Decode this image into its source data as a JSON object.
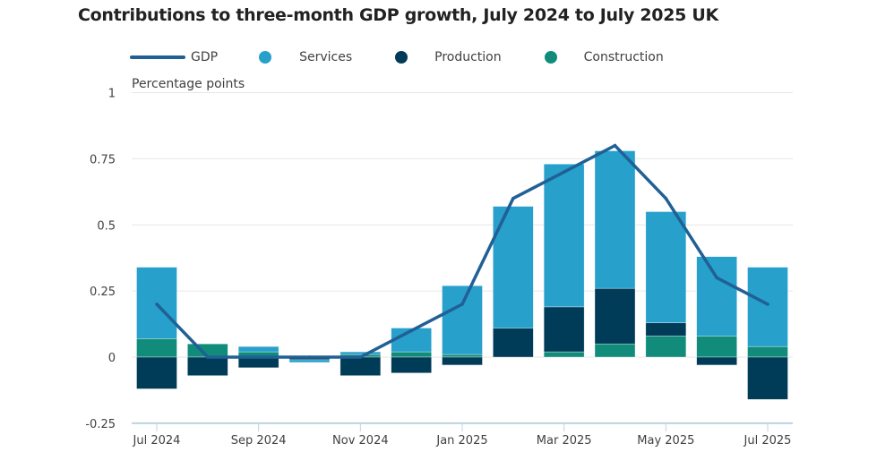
{
  "chart_data": {
    "type": "bar",
    "stacked": true,
    "title": "Contributions to three-month GDP growth, July 2024 to July 2025 UK",
    "ylabel": "Percentage points",
    "xlabel": "",
    "ylim": [
      -0.25,
      1
    ],
    "yticks": [
      -0.25,
      0,
      0.25,
      0.5,
      0.75,
      1
    ],
    "ytick_labels": [
      "-0.25",
      "0",
      "0.25",
      "0.5",
      "0.75",
      "1"
    ],
    "grid": true,
    "legend_position": "top-left",
    "categories": [
      "Jul 2024",
      "Aug 2024",
      "Sep 2024",
      "Oct 2024",
      "Nov 2024",
      "Dec 2024",
      "Jan 2025",
      "Feb 2025",
      "Mar 2025",
      "Apr 2025",
      "May 2025",
      "Jun 2025",
      "Jul 2025"
    ],
    "xtick_labels": [
      {
        "index": 0,
        "label": "Jul 2024"
      },
      {
        "index": 2,
        "label": "Sep 2024"
      },
      {
        "index": 4,
        "label": "Nov 2024"
      },
      {
        "index": 6,
        "label": "Jan 2025"
      },
      {
        "index": 8,
        "label": "Mar 2025"
      },
      {
        "index": 10,
        "label": "May 2025"
      },
      {
        "index": 12,
        "label": "Jul 2025"
      }
    ],
    "series": [
      {
        "name": "Services",
        "type": "bar",
        "color": "#27a0cc",
        "values": [
          0.27,
          0.0,
          0.02,
          -0.01,
          0.01,
          0.09,
          0.26,
          0.46,
          0.54,
          0.52,
          0.42,
          0.3,
          0.3
        ]
      },
      {
        "name": "Production",
        "type": "bar",
        "color": "#003c57",
        "values": [
          -0.12,
          -0.07,
          -0.04,
          -0.01,
          -0.07,
          -0.06,
          -0.03,
          0.11,
          0.17,
          0.21,
          0.05,
          -0.03,
          -0.16
        ]
      },
      {
        "name": "Construction",
        "type": "bar",
        "color": "#118c7b",
        "values": [
          0.07,
          0.05,
          0.02,
          0.0,
          0.01,
          0.02,
          0.01,
          0.0,
          0.02,
          0.05,
          0.08,
          0.08,
          0.04
        ]
      },
      {
        "name": "GDP",
        "type": "line",
        "color": "#206095",
        "values": [
          0.2,
          0.0,
          0.0,
          0.0,
          0.0,
          0.1,
          0.2,
          0.6,
          0.7,
          0.8,
          0.6,
          0.3,
          0.2
        ]
      }
    ]
  },
  "legend": [
    {
      "label": "GDP",
      "kind": "line",
      "color": "#206095"
    },
    {
      "label": "Services",
      "kind": "dot",
      "color": "#27a0cc"
    },
    {
      "label": "Production",
      "kind": "dot",
      "color": "#003c57"
    },
    {
      "label": "Construction",
      "kind": "dot",
      "color": "#118c7b"
    }
  ]
}
